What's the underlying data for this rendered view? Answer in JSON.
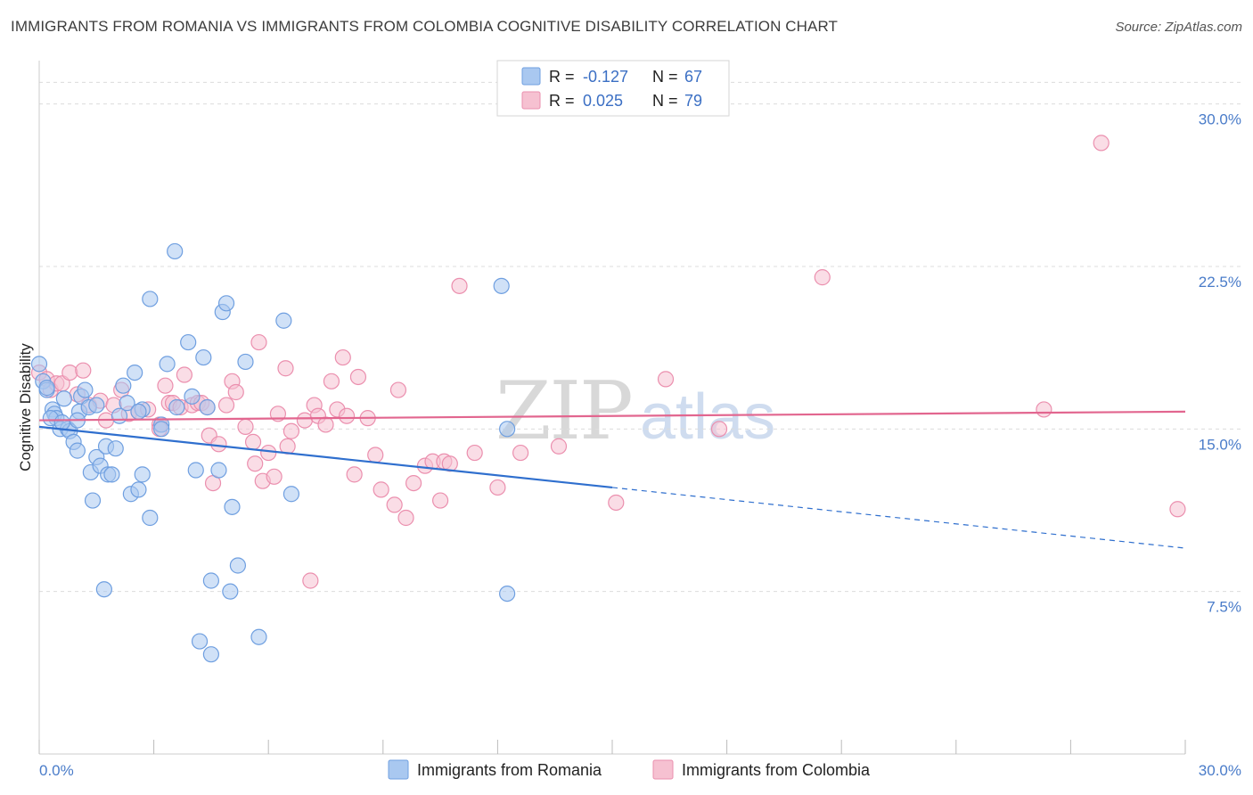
{
  "header": {
    "title": "IMMIGRANTS FROM ROMANIA VS IMMIGRANTS FROM COLOMBIA COGNITIVE DISABILITY CORRELATION CHART",
    "source": "Source: ZipAtlas.com"
  },
  "legend": {
    "series1": {
      "r_label": "R =",
      "r_value": "-0.127",
      "n_label": "N =",
      "n_value": "67"
    },
    "series2": {
      "r_label": "R =",
      "r_value": "0.025",
      "n_label": "N =",
      "n_value": "79"
    }
  },
  "watermark": {
    "zip": "ZIP",
    "atlas": "atlas"
  },
  "colors": {
    "romania_fill": "#a9c8f0",
    "romania_stroke": "#6f9fe0",
    "romania_line": "#2f6fce",
    "colombia_fill": "#f6c1d1",
    "colombia_stroke": "#eb8fae",
    "colombia_line": "#e2668f",
    "tick_text": "#4a7cc9",
    "grid": "#dcdcdc"
  },
  "chart_data": {
    "type": "scatter",
    "title": "IMMIGRANTS FROM ROMANIA VS IMMIGRANTS FROM COLOMBIA COGNITIVE DISABILITY CORRELATION CHART",
    "xlabel": "",
    "ylabel": "Cognitive Disability",
    "xlim": [
      0,
      30
    ],
    "ylim": [
      0,
      32
    ],
    "x_tick_labels": [
      "0.0%",
      "30.0%"
    ],
    "y_ticks": [
      7.5,
      15.0,
      22.5,
      30.0
    ],
    "y_tick_labels": [
      "7.5%",
      "15.0%",
      "22.5%",
      "30.0%"
    ],
    "grid": true,
    "legend_position": "top-center",
    "series": [
      {
        "name": "Immigrants from Romania",
        "r": -0.127,
        "n": 67,
        "trend": {
          "x0": 0.0,
          "y0": 15.1,
          "x1": 15.0,
          "y1": 12.3,
          "dash_to_x": 30.0,
          "dash_to_y": 9.5
        },
        "points": [
          [
            0.0,
            18.0
          ],
          [
            0.1,
            17.2
          ],
          [
            0.2,
            16.8
          ],
          [
            0.35,
            15.9
          ],
          [
            0.4,
            15.7
          ],
          [
            0.45,
            15.5
          ],
          [
            0.55,
            15.0
          ],
          [
            0.65,
            16.4
          ],
          [
            0.75,
            15.0
          ],
          [
            0.8,
            14.9
          ],
          [
            0.9,
            14.4
          ],
          [
            1.0,
            14.0
          ],
          [
            1.05,
            15.8
          ],
          [
            1.1,
            16.5
          ],
          [
            1.2,
            16.8
          ],
          [
            1.3,
            16.0
          ],
          [
            1.35,
            13.0
          ],
          [
            1.4,
            11.7
          ],
          [
            1.5,
            13.7
          ],
          [
            1.6,
            13.3
          ],
          [
            1.75,
            14.2
          ],
          [
            1.8,
            12.9
          ],
          [
            1.9,
            12.9
          ],
          [
            2.0,
            14.1
          ],
          [
            2.1,
            15.6
          ],
          [
            2.2,
            17.0
          ],
          [
            2.3,
            16.2
          ],
          [
            2.4,
            12.0
          ],
          [
            2.5,
            17.6
          ],
          [
            2.6,
            12.2
          ],
          [
            2.7,
            12.9
          ],
          [
            2.7,
            15.9
          ],
          [
            2.9,
            21.0
          ],
          [
            2.9,
            10.9
          ],
          [
            3.2,
            15.2
          ],
          [
            3.35,
            18.0
          ],
          [
            3.55,
            23.2
          ],
          [
            3.9,
            19.0
          ],
          [
            3.6,
            16.0
          ],
          [
            4.0,
            16.5
          ],
          [
            4.1,
            13.1
          ],
          [
            4.3,
            18.3
          ],
          [
            4.4,
            16.0
          ],
          [
            4.2,
            5.2
          ],
          [
            4.5,
            8.0
          ],
          [
            4.7,
            13.1
          ],
          [
            4.8,
            20.4
          ],
          [
            4.9,
            20.8
          ],
          [
            5.0,
            7.5
          ],
          [
            5.05,
            11.4
          ],
          [
            5.2,
            8.7
          ],
          [
            5.4,
            18.1
          ],
          [
            5.75,
            5.4
          ],
          [
            4.5,
            4.6
          ],
          [
            6.4,
            20.0
          ],
          [
            6.6,
            12.0
          ],
          [
            12.1,
            21.6
          ],
          [
            12.25,
            15.0
          ],
          [
            12.25,
            7.4
          ],
          [
            1.7,
            7.6
          ],
          [
            2.6,
            15.8
          ],
          [
            3.2,
            15.0
          ],
          [
            0.3,
            15.5
          ],
          [
            1.0,
            15.4
          ],
          [
            1.5,
            16.1
          ],
          [
            0.6,
            15.3
          ],
          [
            0.2,
            16.9
          ]
        ]
      },
      {
        "name": "Immigrants from Colombia",
        "r": 0.025,
        "n": 79,
        "trend": {
          "x0": 0.0,
          "y0": 15.4,
          "x1": 30.0,
          "y1": 15.8
        },
        "points": [
          [
            0.0,
            17.6
          ],
          [
            0.2,
            17.3
          ],
          [
            0.3,
            16.8
          ],
          [
            0.45,
            17.1
          ],
          [
            0.6,
            17.1
          ],
          [
            0.8,
            17.6
          ],
          [
            1.15,
            17.7
          ],
          [
            1.3,
            16.1
          ],
          [
            1.6,
            16.3
          ],
          [
            1.75,
            15.4
          ],
          [
            1.95,
            16.1
          ],
          [
            2.15,
            16.8
          ],
          [
            2.35,
            15.7
          ],
          [
            2.6,
            15.8
          ],
          [
            2.85,
            15.9
          ],
          [
            3.15,
            15.2
          ],
          [
            3.15,
            15.0
          ],
          [
            3.3,
            17.0
          ],
          [
            3.4,
            16.2
          ],
          [
            3.5,
            16.2
          ],
          [
            3.7,
            16.0
          ],
          [
            3.8,
            17.5
          ],
          [
            4.0,
            16.1
          ],
          [
            4.15,
            16.2
          ],
          [
            4.25,
            16.2
          ],
          [
            4.4,
            16.0
          ],
          [
            4.45,
            14.7
          ],
          [
            4.55,
            12.5
          ],
          [
            4.7,
            14.3
          ],
          [
            4.9,
            16.1
          ],
          [
            5.05,
            17.2
          ],
          [
            5.15,
            16.7
          ],
          [
            5.4,
            15.1
          ],
          [
            5.6,
            14.4
          ],
          [
            5.65,
            13.4
          ],
          [
            5.75,
            19.0
          ],
          [
            5.85,
            12.6
          ],
          [
            6.0,
            13.9
          ],
          [
            6.15,
            12.8
          ],
          [
            6.25,
            15.7
          ],
          [
            6.45,
            17.8
          ],
          [
            6.5,
            14.2
          ],
          [
            6.6,
            14.9
          ],
          [
            6.95,
            15.4
          ],
          [
            7.2,
            16.1
          ],
          [
            7.3,
            15.6
          ],
          [
            7.5,
            15.2
          ],
          [
            7.65,
            17.2
          ],
          [
            7.8,
            15.9
          ],
          [
            7.95,
            18.3
          ],
          [
            8.05,
            15.6
          ],
          [
            8.25,
            12.9
          ],
          [
            8.35,
            17.4
          ],
          [
            8.6,
            15.5
          ],
          [
            8.8,
            13.8
          ],
          [
            8.95,
            12.2
          ],
          [
            9.3,
            11.5
          ],
          [
            9.4,
            16.8
          ],
          [
            9.6,
            10.9
          ],
          [
            9.8,
            12.5
          ],
          [
            10.1,
            13.3
          ],
          [
            10.3,
            13.5
          ],
          [
            10.5,
            11.7
          ],
          [
            10.6,
            13.5
          ],
          [
            10.75,
            13.4
          ],
          [
            11.0,
            21.6
          ],
          [
            11.4,
            13.9
          ],
          [
            12.0,
            12.3
          ],
          [
            12.6,
            13.9
          ],
          [
            13.6,
            14.2
          ],
          [
            15.1,
            11.6
          ],
          [
            16.4,
            17.3
          ],
          [
            17.8,
            15.0
          ],
          [
            20.5,
            22.0
          ],
          [
            26.3,
            15.9
          ],
          [
            27.8,
            28.2
          ],
          [
            29.8,
            11.3
          ],
          [
            7.1,
            8.0
          ],
          [
            1.0,
            16.6
          ]
        ]
      }
    ]
  }
}
